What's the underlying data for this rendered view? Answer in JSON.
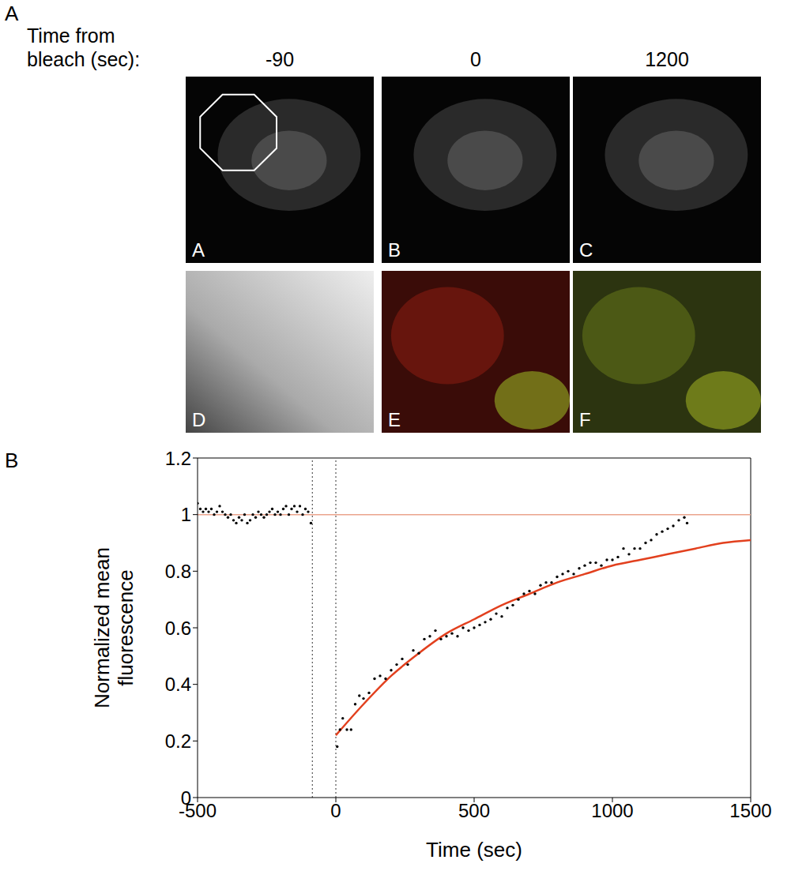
{
  "figure": {
    "panel_labels": [
      "A",
      "B"
    ]
  },
  "image_panels": {
    "header": "Time from bleach (sec):",
    "times": [
      -90,
      0,
      1200
    ],
    "letters": [
      "A",
      "B",
      "C",
      "D",
      "E",
      "F"
    ]
  },
  "chart_data": {
    "type": "scatter",
    "x_label": "Time (sec)",
    "y_label": "Normalized mean fluorescence",
    "xlim": [
      -500,
      1500
    ],
    "xticks": [
      -500,
      0,
      500,
      1000,
      1500
    ],
    "ylim": [
      0,
      1.2
    ],
    "yticks": [
      0,
      0.2,
      0.4,
      0.6,
      0.8,
      1,
      1.2
    ],
    "hlines": [
      {
        "value": 1,
        "color": "#eba48c",
        "line_style": "solid"
      }
    ],
    "vlines": [
      {
        "value": -85,
        "color": "#333333",
        "line_style": "dotted"
      },
      {
        "value": 0,
        "color": "#333333",
        "line_style": "dotted"
      }
    ],
    "series": [
      {
        "type": "scatter",
        "color": "#000000",
        "marker": "dot",
        "x": [
          -500,
          -490,
          -480,
          -470,
          -460,
          -450,
          -440,
          -430,
          -420,
          -410,
          -400,
          -390,
          -380,
          -370,
          -360,
          -350,
          -340,
          -330,
          -320,
          -310,
          -300,
          -290,
          -280,
          -270,
          -260,
          -250,
          -240,
          -230,
          -220,
          -210,
          -200,
          -190,
          -180,
          -170,
          -160,
          -150,
          -140,
          -130,
          -120,
          -110,
          -100,
          -90
        ],
        "values": [
          1.04,
          1.02,
          1.01,
          1.02,
          1.01,
          1.02,
          1.0,
          1.01,
          1.03,
          1.01,
          1.0,
          0.99,
          1.0,
          0.98,
          0.97,
          0.99,
          0.98,
          1.0,
          0.97,
          0.98,
          1.0,
          0.99,
          1.01,
          1.0,
          0.99,
          1.0,
          1.01,
          1.02,
          1.0,
          1.01,
          1.0,
          1.02,
          1.03,
          1.0,
          1.02,
          1.03,
          1.01,
          1.03,
          1.0,
          1.02,
          1.01,
          0.97
        ]
      },
      {
        "type": "scatter",
        "color": "#000000",
        "marker": "dot",
        "x": [
          5,
          15,
          25,
          40,
          55,
          70,
          85,
          100,
          120,
          140,
          160,
          180,
          200,
          220,
          240,
          260,
          280,
          300,
          320,
          340,
          360,
          380,
          400,
          420,
          440,
          460,
          480,
          500,
          520,
          540,
          560,
          580,
          600,
          620,
          640,
          660,
          680,
          700,
          720,
          740,
          760,
          780,
          800,
          820,
          840,
          860,
          880,
          900,
          920,
          940,
          960,
          980,
          1000,
          1020,
          1040,
          1060,
          1080,
          1100,
          1120,
          1140,
          1160,
          1180,
          1200,
          1220,
          1240,
          1260,
          1270
        ],
        "values": [
          0.18,
          0.24,
          0.28,
          0.24,
          0.24,
          0.33,
          0.36,
          0.35,
          0.37,
          0.42,
          0.43,
          0.42,
          0.45,
          0.47,
          0.49,
          0.47,
          0.52,
          0.51,
          0.56,
          0.57,
          0.59,
          0.56,
          0.57,
          0.58,
          0.57,
          0.6,
          0.59,
          0.6,
          0.61,
          0.62,
          0.63,
          0.65,
          0.64,
          0.67,
          0.68,
          0.7,
          0.72,
          0.73,
          0.72,
          0.75,
          0.76,
          0.76,
          0.78,
          0.79,
          0.8,
          0.79,
          0.81,
          0.82,
          0.83,
          0.83,
          0.82,
          0.84,
          0.84,
          0.85,
          0.88,
          0.86,
          0.88,
          0.88,
          0.9,
          0.91,
          0.93,
          0.94,
          0.95,
          0.96,
          0.98,
          0.99,
          0.97
        ]
      },
      {
        "type": "line",
        "color": "#e2401e",
        "line_style": "solid",
        "x": [
          0,
          100,
          200,
          300,
          400,
          500,
          600,
          700,
          800,
          900,
          1000,
          1100,
          1200,
          1300,
          1400,
          1500
        ],
        "values": [
          0.22,
          0.33,
          0.43,
          0.51,
          0.58,
          0.63,
          0.68,
          0.72,
          0.76,
          0.79,
          0.82,
          0.84,
          0.86,
          0.88,
          0.9,
          0.91
        ]
      }
    ]
  }
}
